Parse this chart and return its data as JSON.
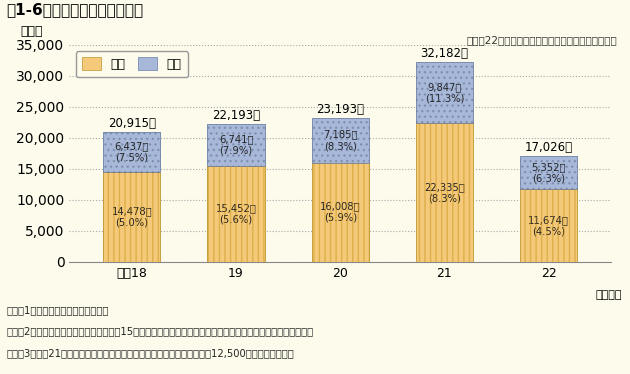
{
  "title": "図1-6　最近５年間の離職者数",
  "subtitle": "（平成22年度一般職の国家公務員の任用状況調査）",
  "ylabel": "（人）",
  "xlabel_unit": "（年度）",
  "categories": [
    "平成18",
    "19",
    "20",
    "21",
    "22"
  ],
  "male_values": [
    14478,
    15452,
    16008,
    22335,
    11674
  ],
  "female_values": [
    6437,
    6741,
    7185,
    9847,
    5352
  ],
  "total_values": [
    20915,
    22193,
    23193,
    32182,
    17026
  ],
  "male_labels": [
    "14,478人\n(5.0%)",
    "15,452人\n(5.6%)",
    "16,008人\n(5.9%)",
    "22,335人\n(8.3%)",
    "11,674人\n(4.5%)"
  ],
  "female_labels": [
    "6,437人\n(7.5%)",
    "6,741人\n(7.9%)",
    "7,185人\n(8.3%)",
    "9,847人\n(11.3%)",
    "5,352人\n(6.3%)"
  ],
  "total_labels": [
    "20,915人",
    "22,193人",
    "23,193人",
    "32,182人",
    "17,026人"
  ],
  "male_color": "#F5C97A",
  "female_color": "#A8B8D8",
  "male_legend": "男性",
  "female_legend": "女性",
  "ylim": [
    0,
    35000
  ],
  "yticks": [
    0,
    5000,
    10000,
    15000,
    20000,
    25000,
    30000,
    35000
  ],
  "bg_color": "#FDFBEC",
  "notes": [
    "（注）1　日本郵政公社職員を除く。",
    "　　　2　（　）内は離職率（前年度１月15日現在の在職者数に対する当該年度中の離職者数の割合）を示す。",
    "　　　3　平成21年度の離職者数には、社会保険庁の廃止に伴うもの（約12,500人）が含まれる。"
  ]
}
